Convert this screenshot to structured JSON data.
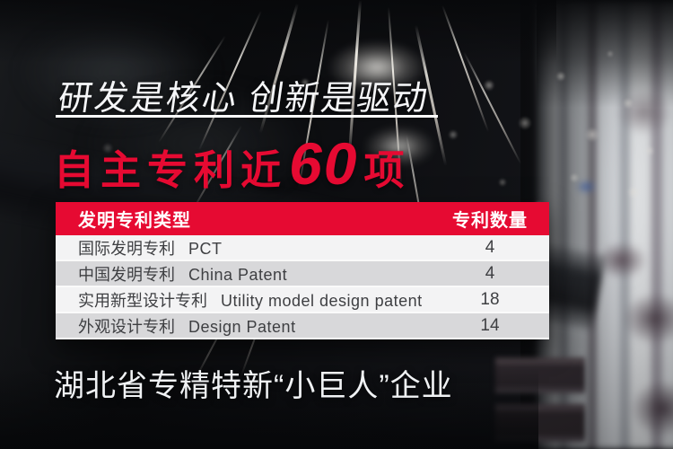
{
  "colors": {
    "accent_red": "#e60a32"
  },
  "hero": {
    "headline": "研发是核心 创新是驱动",
    "patent_line": {
      "prefix": "自主专利近",
      "number": "60",
      "suffix": "项"
    }
  },
  "table": {
    "header": {
      "type": "发明专利类型",
      "count": "专利数量"
    },
    "rows": [
      {
        "zh": "国际发明专利",
        "en": "PCT",
        "count": "4"
      },
      {
        "zh": "中国发明专利",
        "en": "China Patent",
        "count": "4"
      },
      {
        "zh": "实用新型设计专利",
        "en": "Utility model design patent",
        "count": "18"
      },
      {
        "zh": "外观设计专利",
        "en": "Design Patent",
        "count": "14"
      }
    ]
  },
  "footer": {
    "text": "湖北省专精特新“小巨人”企业"
  },
  "chart_data": {
    "type": "table",
    "title": "自主专利近60项",
    "columns": [
      "发明专利类型",
      "专利数量"
    ],
    "categories": [
      "国际发明专利 PCT",
      "中国发明专利 China Patent",
      "实用新型设计专利 Utility model design patent",
      "外观设计专利 Design Patent"
    ],
    "values": [
      4,
      4,
      18,
      14
    ]
  }
}
